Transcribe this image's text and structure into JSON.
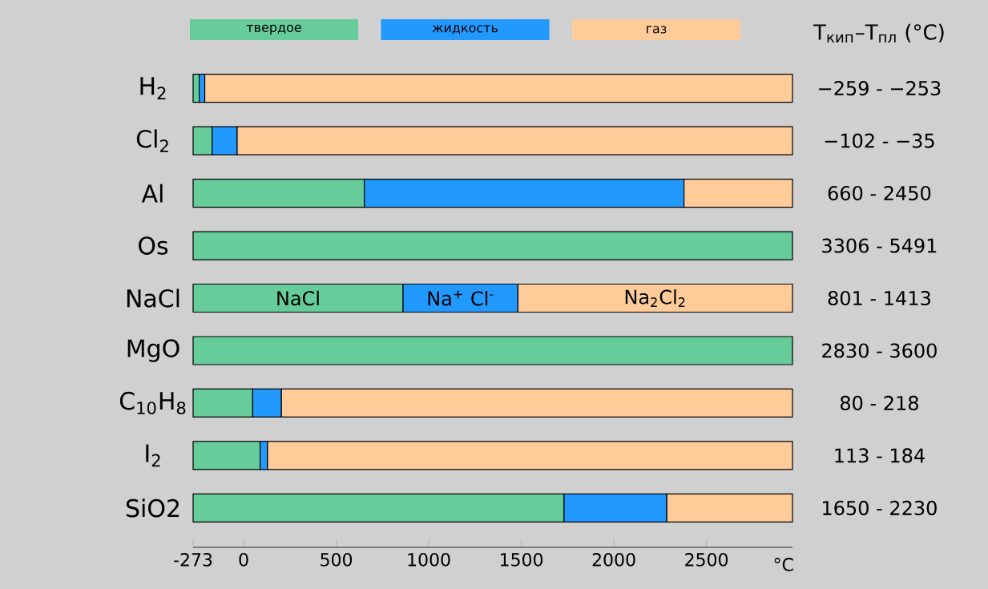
{
  "chart_data": {
    "type": "bar",
    "orientation": "horizontal",
    "categories": [
      "H$_{2}$",
      "Cl$_{2}$",
      "Al",
      "Os",
      "NaCl",
      "MgO",
      "C$_{10}$H$_{8}$",
      "I$_{2}$",
      "SiO2"
    ],
    "series": [
      {
        "name": "твердое",
        "color": "#66cc99",
        "base": [
          -273,
          -273,
          -273,
          -273,
          -273,
          -273,
          -273,
          -273,
          -273
        ],
        "values": [
          33,
          103,
          925,
          3238,
          1134,
          3238,
          322,
          362,
          2004
        ],
        "value_labels": [
          null,
          null,
          null,
          null,
          "NaCl",
          null,
          null,
          null,
          null
        ]
      },
      {
        "name": "жидкость",
        "color": "#2299ff",
        "base": [
          -240,
          -170,
          652,
          null,
          861,
          null,
          49,
          89,
          1731
        ],
        "values": [
          30,
          135,
          1727,
          null,
          621,
          null,
          155,
          40,
          555
        ],
        "value_labels": [
          null,
          null,
          null,
          null,
          "Na$^{+}$ Cl$^{-}$",
          null,
          null,
          null,
          null
        ]
      },
      {
        "name": "газ",
        "color": "#ffcc99",
        "base": [
          -210,
          -35,
          2379,
          null,
          1482,
          null,
          204,
          129,
          2286
        ],
        "values": [
          3175,
          3000,
          586,
          null,
          1483,
          null,
          2761,
          2836,
          679
        ],
        "value_labels": [
          null,
          null,
          null,
          null,
          "Na$_{2}$Cl$_{2}$",
          null,
          null,
          null,
          null
        ]
      }
    ],
    "xlim": [
      -273,
      2965
    ],
    "xticks": [
      -273,
      0,
      500,
      1000,
      1500,
      2000,
      2500
    ],
    "xlabel": "°C",
    "legend": "top",
    "annotations": [
      "T$_{кип}$–T$_{пл}$ (°C)",
      "−259 - −253",
      "−102 - −35",
      "660 - 2450",
      "3306 - 5491",
      "801 - 1413",
      "2830 - 3600",
      "80 - 218",
      "113 - 184",
      "1650 - 2230"
    ]
  }
}
